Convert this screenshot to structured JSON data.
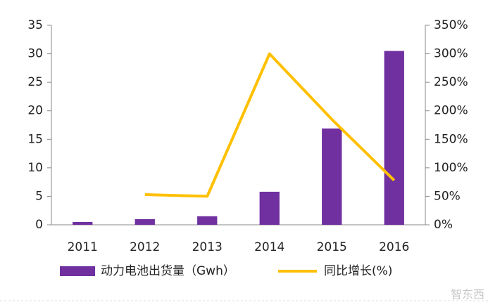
{
  "chart_data": {
    "type": "bar",
    "categories": [
      "2011",
      "2012",
      "2013",
      "2014",
      "2015",
      "2016"
    ],
    "series": [
      {
        "name": "动力电池出货量（Gwh）",
        "type": "bar",
        "color": "#7030a0",
        "values": [
          0.5,
          1.0,
          1.5,
          5.8,
          16.9,
          30.5
        ]
      },
      {
        "name": "同比增长(%)",
        "type": "line",
        "axis": "y2",
        "color": "#ffc000",
        "values": [
          null,
          53,
          50,
          300,
          185,
          78
        ]
      }
    ],
    "ylim": [
      0,
      35
    ],
    "yticks": [
      0,
      5,
      10,
      15,
      20,
      25,
      30,
      35
    ],
    "y2lim": [
      0,
      350
    ],
    "y2ticks": [
      {
        "value": 0,
        "label": "0%"
      },
      {
        "value": 50,
        "label": "50%"
      },
      {
        "value": 100,
        "label": "100%"
      },
      {
        "value": 150,
        "label": "150%"
      },
      {
        "value": 200,
        "label": "200%"
      },
      {
        "value": 250,
        "label": "250%"
      },
      {
        "value": 300,
        "label": "300%"
      },
      {
        "value": 350,
        "label": "350%"
      }
    ],
    "grid": false,
    "legend": "bottom",
    "watermark": "智东西"
  }
}
